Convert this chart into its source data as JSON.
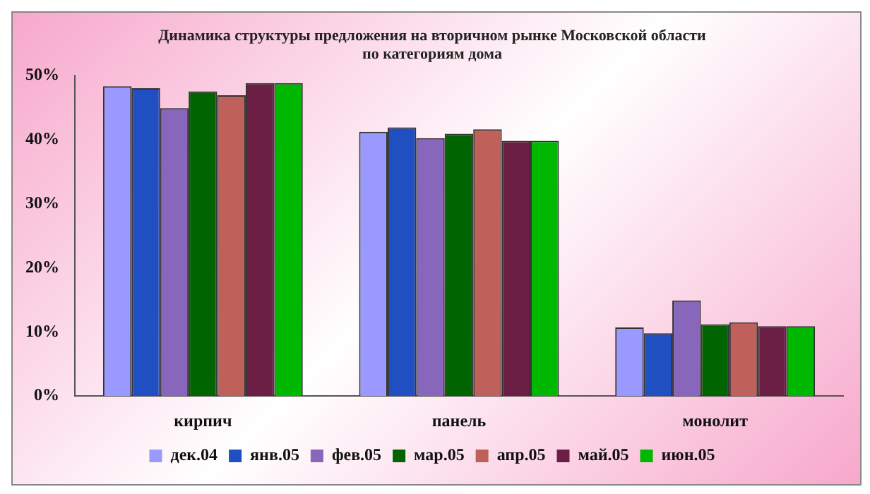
{
  "chart_data": {
    "type": "bar",
    "title": "Динамика структуры предложения на вторичном рынке Московской области",
    "subtitle": "по категориям дома",
    "categories": [
      "кирпич",
      "панель",
      "монолит"
    ],
    "series": [
      {
        "name": "дек.04",
        "color": "#9999ff",
        "values": [
          48.3,
          41.2,
          10.7
        ]
      },
      {
        "name": "янв.05",
        "color": "#1f4fc0",
        "values": [
          48,
          41.9,
          9.8
        ]
      },
      {
        "name": "фев.05",
        "color": "#8866bb",
        "values": [
          44.9,
          40.2,
          14.9
        ]
      },
      {
        "name": "мар.05",
        "color": "#006400",
        "values": [
          47.5,
          40.9,
          11.2
        ]
      },
      {
        "name": "апр.05",
        "color": "#c0605a",
        "values": [
          46.9,
          41.6,
          11.5
        ]
      },
      {
        "name": "май.05",
        "color": "#6b1f45",
        "values": [
          48.8,
          39.8,
          10.9
        ]
      },
      {
        "name": "июн.05",
        "color": "#00b800",
        "values": [
          48.8,
          39.8,
          10.9
        ]
      }
    ],
    "ylim": [
      0,
      50
    ],
    "yticks": [
      {
        "value": 0,
        "label": "0%"
      },
      {
        "value": 10,
        "label": "10%"
      },
      {
        "value": 20,
        "label": "20%"
      },
      {
        "value": 30,
        "label": "30%"
      },
      {
        "value": 40,
        "label": "40%"
      },
      {
        "value": 50,
        "label": "50%"
      }
    ],
    "grid": false,
    "legend": "bottom"
  }
}
